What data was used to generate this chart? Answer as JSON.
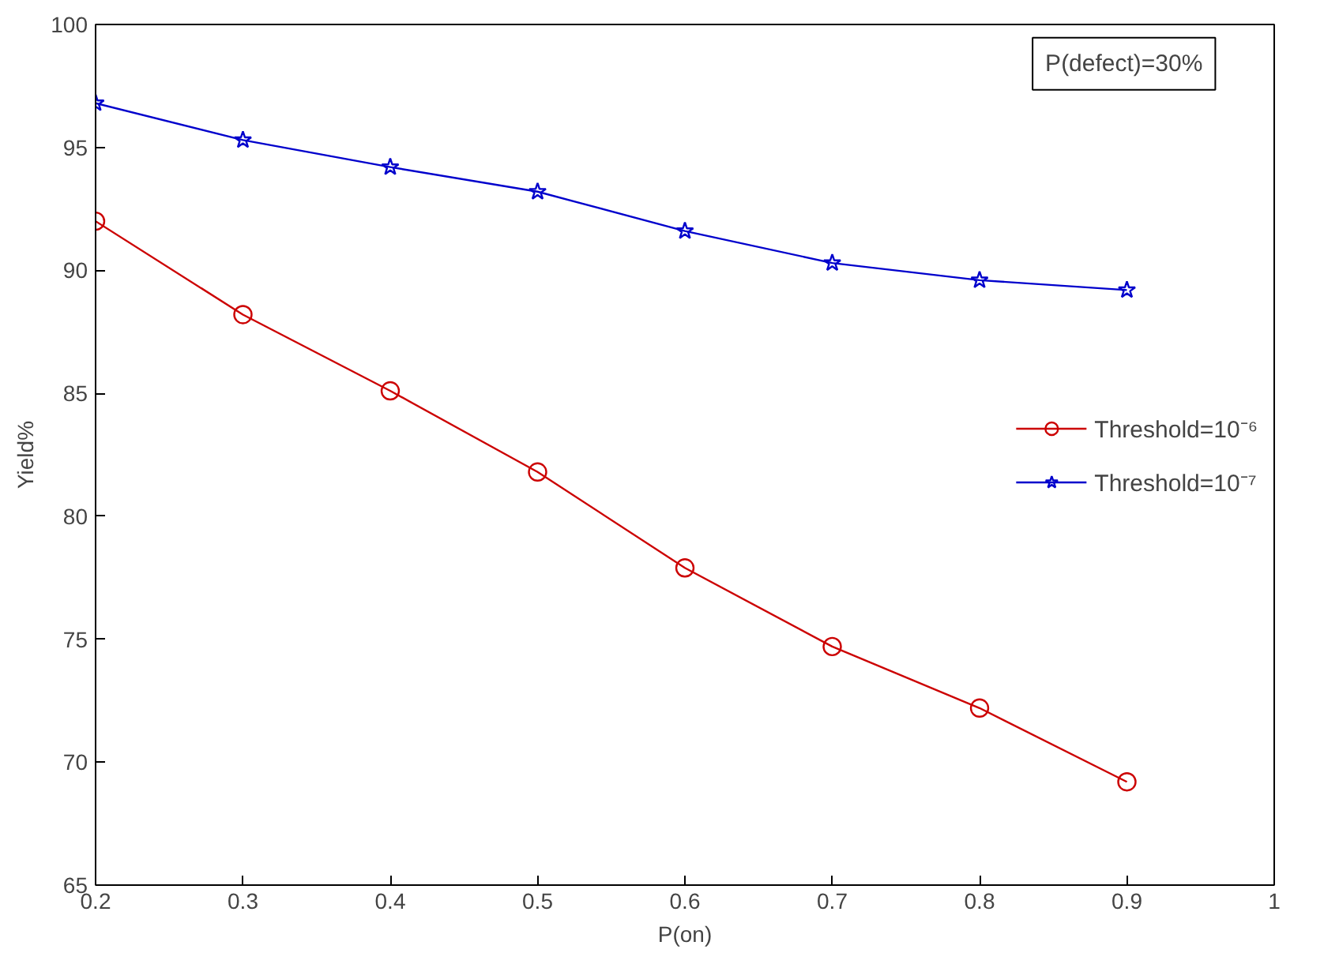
{
  "chart_data": {
    "type": "line",
    "xlabel": "P(on)",
    "ylabel": "Yield%",
    "x": [
      0.2,
      0.3,
      0.4,
      0.5,
      0.6,
      0.7,
      0.8,
      0.9
    ],
    "series": [
      {
        "name": "Threshold=10⁻⁶",
        "color": "#cc0000",
        "marker": "circle",
        "values": [
          92.0,
          88.2,
          85.1,
          81.8,
          77.9,
          74.7,
          72.2,
          69.2
        ]
      },
      {
        "name": "Threshold=10⁻⁷",
        "color": "#0000cc",
        "marker": "star",
        "values": [
          96.8,
          95.3,
          94.2,
          93.2,
          91.6,
          90.3,
          89.6,
          89.2
        ]
      }
    ],
    "xlim": [
      0.2,
      1
    ],
    "ylim": [
      65,
      100
    ],
    "xticks": [
      0.2,
      0.3,
      0.4,
      0.5,
      0.6,
      0.7,
      0.8,
      0.9,
      1
    ],
    "yticks": [
      65,
      70,
      75,
      80,
      85,
      90,
      95,
      100
    ],
    "annotations": [
      "P(defect)=30%"
    ],
    "legend": "right",
    "grid": false
  }
}
